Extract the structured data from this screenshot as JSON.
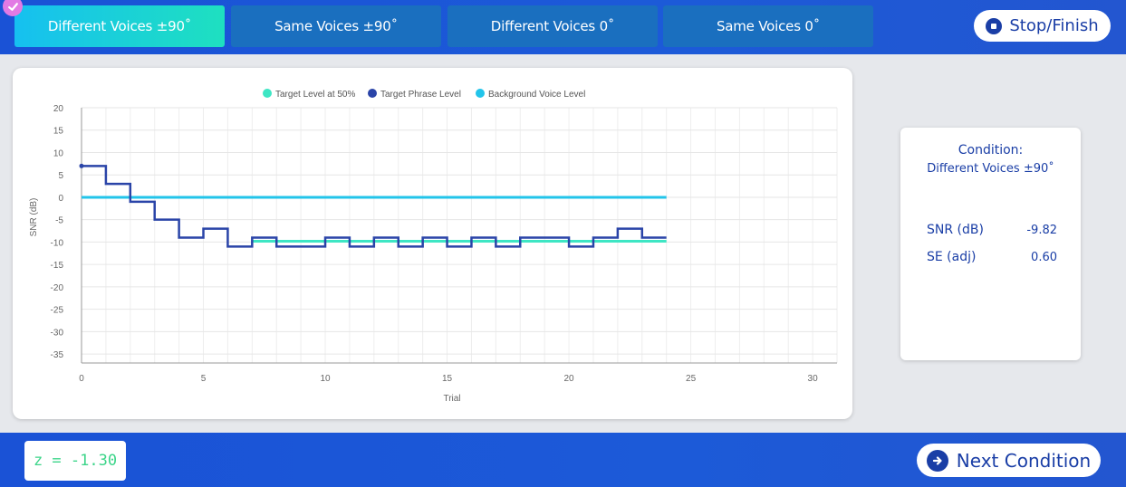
{
  "tabs": [
    {
      "label": "Different Voices ±90˚",
      "active": true,
      "completed": true
    },
    {
      "label": "Same Voices ±90˚",
      "active": false
    },
    {
      "label": "Different Voices 0˚",
      "active": false
    },
    {
      "label": "Same Voices 0˚",
      "active": false
    }
  ],
  "header": {
    "stop_label": "Stop/Finish"
  },
  "info": {
    "condition_label": "Condition:",
    "condition_value": "Different Voices ±90˚",
    "snr_label": "SNR (dB)",
    "snr_value": "-9.82",
    "se_label": "SE (adj)",
    "se_value": "0.60"
  },
  "footer": {
    "zscore": "z = -1.30",
    "next_label": "Next Condition"
  },
  "colors": {
    "target_level": "#3ee6c4",
    "target_phrase": "#2a44a8",
    "background_voice": "#22c4ea"
  },
  "chart_data": {
    "type": "line",
    "xlabel": "Trial",
    "ylabel": "SNR (dB)",
    "xlim": [
      0,
      31
    ],
    "ylim": [
      -37,
      20
    ],
    "xticks": [
      0,
      5,
      10,
      15,
      20,
      25,
      30
    ],
    "yticks": [
      20,
      15,
      10,
      5,
      0,
      -5,
      -10,
      -15,
      -20,
      -25,
      -30,
      -35
    ],
    "grid": true,
    "legend_position": "top-center",
    "series": [
      {
        "name": "Target Level at 50%",
        "step": false,
        "x": [
          7,
          24
        ],
        "values": [
          -9.82,
          -9.82
        ]
      },
      {
        "name": "Target Phrase Level",
        "step": true,
        "x": [
          0,
          1,
          2,
          3,
          4,
          5,
          6,
          7,
          8,
          9,
          10,
          11,
          12,
          13,
          14,
          15,
          16,
          17,
          18,
          19,
          20,
          21,
          22,
          23,
          24
        ],
        "values": [
          7,
          3,
          -1,
          -5,
          -9,
          -7,
          -11,
          -9,
          -11,
          -11,
          -9,
          -11,
          -9,
          -11,
          -9,
          -11,
          -9,
          -11,
          -9,
          -9,
          -11,
          -9,
          -7,
          -9,
          -9
        ]
      },
      {
        "name": "Background Voice Level",
        "step": false,
        "x": [
          0,
          24
        ],
        "values": [
          0,
          0
        ]
      }
    ]
  }
}
